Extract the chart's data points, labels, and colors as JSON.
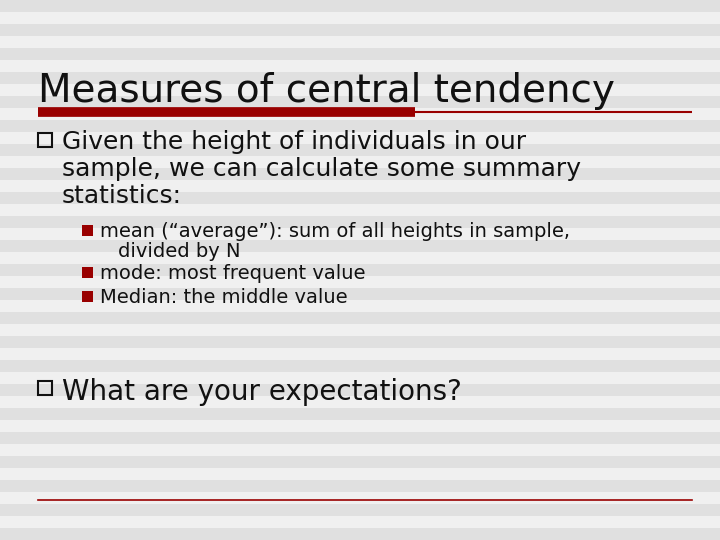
{
  "title": "Measures of central tendency",
  "title_fontsize": 28,
  "title_color": "#111111",
  "background_color": "#f0f0f0",
  "stripe_color": "#e0e0e0",
  "stripe_alt_color": "#f0f0f0",
  "underline_thick_color": "#990000",
  "underline_thin_color": "#990000",
  "text_color": "#111111",
  "bullet1_text_line1": "Given the height of individuals in our",
  "bullet1_text_line2": "sample, we can calculate some summary",
  "bullet1_text_line3": "statistics:",
  "bullet1_fontsize": 18,
  "sub_bullets": [
    [
      "mean (“average”): sum of all heights in sample,",
      "divided by N"
    ],
    [
      "mode: most frequent value"
    ],
    [
      "Median: the middle value"
    ]
  ],
  "sub_bullet_fontsize": 14,
  "bullet2_text": "What are your expectations?",
  "bullet2_fontsize": 20,
  "square_open_color": "#111111",
  "square_filled_color": "#990000",
  "bottom_line_color": "#990000"
}
